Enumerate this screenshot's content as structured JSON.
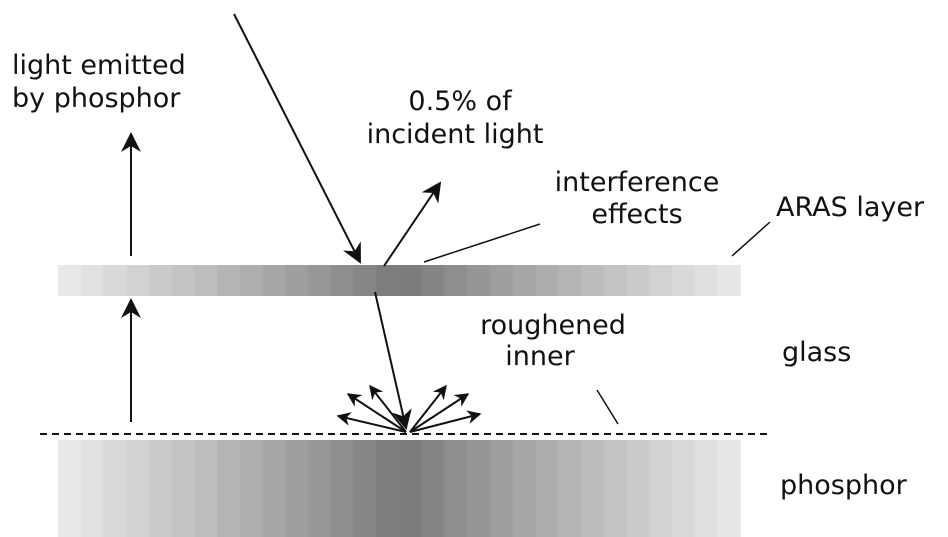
{
  "labels": {
    "light_emitted_line1": "light emitted",
    "light_emitted_line2": "by phosphor",
    "incident_line1": "0.5% of",
    "incident_line2": "incident light",
    "interference_line1": "interference",
    "interference_line2": "effects",
    "aras_layer": "ARAS layer",
    "roughened_line1": "roughened",
    "roughened_line2": "inner",
    "glass": "glass",
    "phosphor": "phosphor"
  },
  "colors": {
    "line": "#111111",
    "gradient_dark": "#777777",
    "gradient_light": "#ebebeb",
    "background": "#ffffff"
  }
}
